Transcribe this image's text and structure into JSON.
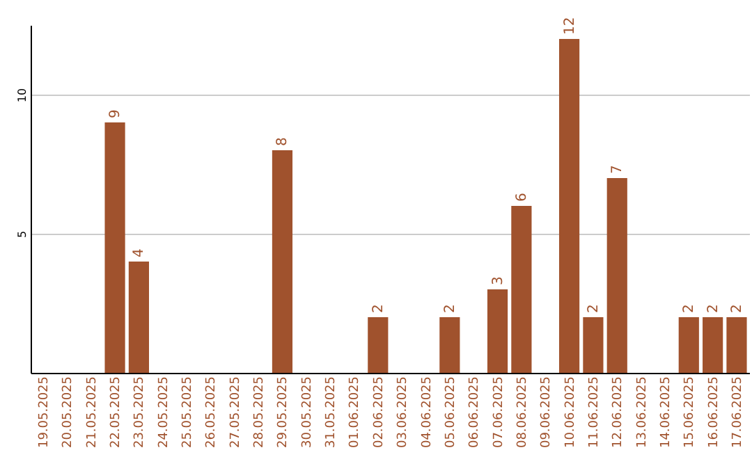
{
  "chart_data": {
    "type": "bar",
    "categories": [
      "19.05.2025",
      "20.05.2025",
      "21.05.2025",
      "22.05.2025",
      "23.05.2025",
      "24.05.2025",
      "25.05.2025",
      "26.05.2025",
      "27.05.2025",
      "28.05.2025",
      "29.05.2025",
      "30.05.2025",
      "31.05.2025",
      "01.06.2025",
      "02.06.2025",
      "03.06.2025",
      "04.06.2025",
      "05.06.2025",
      "06.06.2025",
      "07.06.2025",
      "08.06.2025",
      "09.06.2025",
      "10.06.2025",
      "11.06.2025",
      "12.06.2025",
      "13.06.2025",
      "14.06.2025",
      "15.06.2025",
      "16.06.2025",
      "17.06.2025"
    ],
    "values": [
      null,
      null,
      null,
      9,
      4,
      null,
      null,
      null,
      null,
      null,
      8,
      null,
      null,
      null,
      2,
      null,
      null,
      2,
      null,
      3,
      6,
      null,
      12,
      2,
      7,
      null,
      null,
      2,
      2,
      2
    ],
    "color": "#a0522d",
    "ylim": [
      0,
      12.5
    ],
    "yticks": [
      5,
      10
    ],
    "grid": "y",
    "data_labels": true
  }
}
